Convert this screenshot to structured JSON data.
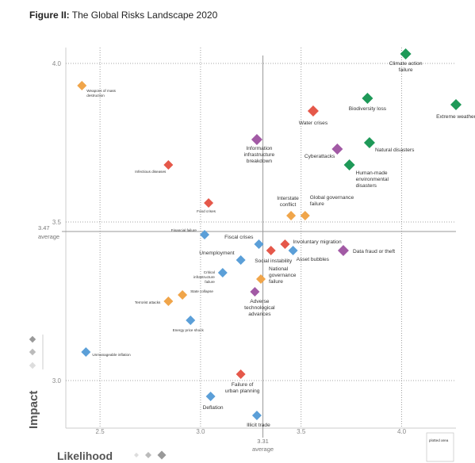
{
  "figure": {
    "prefix": "Figure II:",
    "title": "The Global Risks Landscape 2020"
  },
  "chart_data": {
    "type": "scatter",
    "xlabel": "Likelihood",
    "ylabel": "Impact",
    "xlim": [
      2.33,
      4.27
    ],
    "ylim": [
      2.85,
      4.05
    ],
    "x_ticks": [
      "2.5",
      "3.0",
      "3.5",
      "4.0"
    ],
    "x_tick_values": [
      2.5,
      3.0,
      3.5,
      4.0
    ],
    "y_ticks": [
      "3.0",
      "3.5",
      "4.0"
    ],
    "y_tick_values": [
      3.0,
      3.5,
      4.0
    ],
    "x_average": {
      "value": 3.31,
      "label": "3.31",
      "sublabel": "average"
    },
    "y_average": {
      "value": 3.47,
      "label": "3.47",
      "sublabel": "average"
    },
    "legend_note": "plotted area",
    "colors": {
      "economic": "#5b9fd8",
      "environmental": "#1e9958",
      "geopolitical": "#f0a54a",
      "societal": "#e5584a",
      "technological": "#a25aa5"
    },
    "points": [
      {
        "label": "Climate action failure",
        "x": 4.02,
        "y": 4.03,
        "cat": "environmental"
      },
      {
        "label": "Extreme weather",
        "x": 4.27,
        "y": 3.87,
        "cat": "environmental"
      },
      {
        "label": "Biodiversity loss",
        "x": 3.83,
        "y": 3.89,
        "cat": "environmental"
      },
      {
        "label": "Natural disasters",
        "x": 3.84,
        "y": 3.75,
        "cat": "environmental"
      },
      {
        "label": "Human-made environmental disasters",
        "x": 3.74,
        "y": 3.68,
        "cat": "environmental"
      },
      {
        "label": "Water crises",
        "x": 3.56,
        "y": 3.85,
        "cat": "societal"
      },
      {
        "label": "Cyberattacks",
        "x": 3.68,
        "y": 3.73,
        "cat": "technological"
      },
      {
        "label": "Information infrastructure breakdown",
        "x": 3.28,
        "y": 3.76,
        "cat": "technological"
      },
      {
        "label": "Weapons of mass destruction",
        "x": 2.41,
        "y": 3.93,
        "cat": "geopolitical"
      },
      {
        "label": "Infectious diseases",
        "x": 2.84,
        "y": 3.68,
        "cat": "societal"
      },
      {
        "label": "Food crises",
        "x": 3.04,
        "y": 3.56,
        "cat": "societal"
      },
      {
        "label": "Interstate conflict",
        "x": 3.45,
        "y": 3.52,
        "cat": "geopolitical"
      },
      {
        "label": "Global governance failure",
        "x": 3.52,
        "y": 3.52,
        "cat": "geopolitical"
      },
      {
        "label": "Financial failure",
        "x": 3.02,
        "y": 3.46,
        "cat": "economic"
      },
      {
        "label": "Fiscal crises",
        "x": 3.29,
        "y": 3.43,
        "cat": "economic"
      },
      {
        "label": "Involuntary migration",
        "x": 3.42,
        "y": 3.43,
        "cat": "societal"
      },
      {
        "label": "Data fraud or theft",
        "x": 3.71,
        "y": 3.41,
        "cat": "technological"
      },
      {
        "label": "Unemployment",
        "x": 3.2,
        "y": 3.38,
        "cat": "economic"
      },
      {
        "label": "Social instability",
        "x": 3.35,
        "y": 3.41,
        "cat": "societal"
      },
      {
        "label": "Asset bubbles",
        "x": 3.46,
        "y": 3.41,
        "cat": "economic"
      },
      {
        "label": "Critical infrastructure failure",
        "x": 3.11,
        "y": 3.34,
        "cat": "economic"
      },
      {
        "label": "National governance failure",
        "x": 3.3,
        "y": 3.32,
        "cat": "geopolitical"
      },
      {
        "label": "Adverse technological advances",
        "x": 3.27,
        "y": 3.28,
        "cat": "technological"
      },
      {
        "label": "State collapse",
        "x": 2.91,
        "y": 3.27,
        "cat": "geopolitical"
      },
      {
        "label": "Terrorist attacks",
        "x": 2.84,
        "y": 3.25,
        "cat": "geopolitical"
      },
      {
        "label": "Energy price shock",
        "x": 2.95,
        "y": 3.19,
        "cat": "economic"
      },
      {
        "label": "Unmanageable inflation",
        "x": 2.43,
        "y": 3.09,
        "cat": "economic"
      },
      {
        "label": "Failure of urban planning",
        "x": 3.2,
        "y": 3.02,
        "cat": "societal"
      },
      {
        "label": "Deflation",
        "x": 3.05,
        "y": 2.95,
        "cat": "economic"
      },
      {
        "label": "Illicit trade",
        "x": 3.28,
        "y": 2.89,
        "cat": "economic"
      }
    ]
  }
}
